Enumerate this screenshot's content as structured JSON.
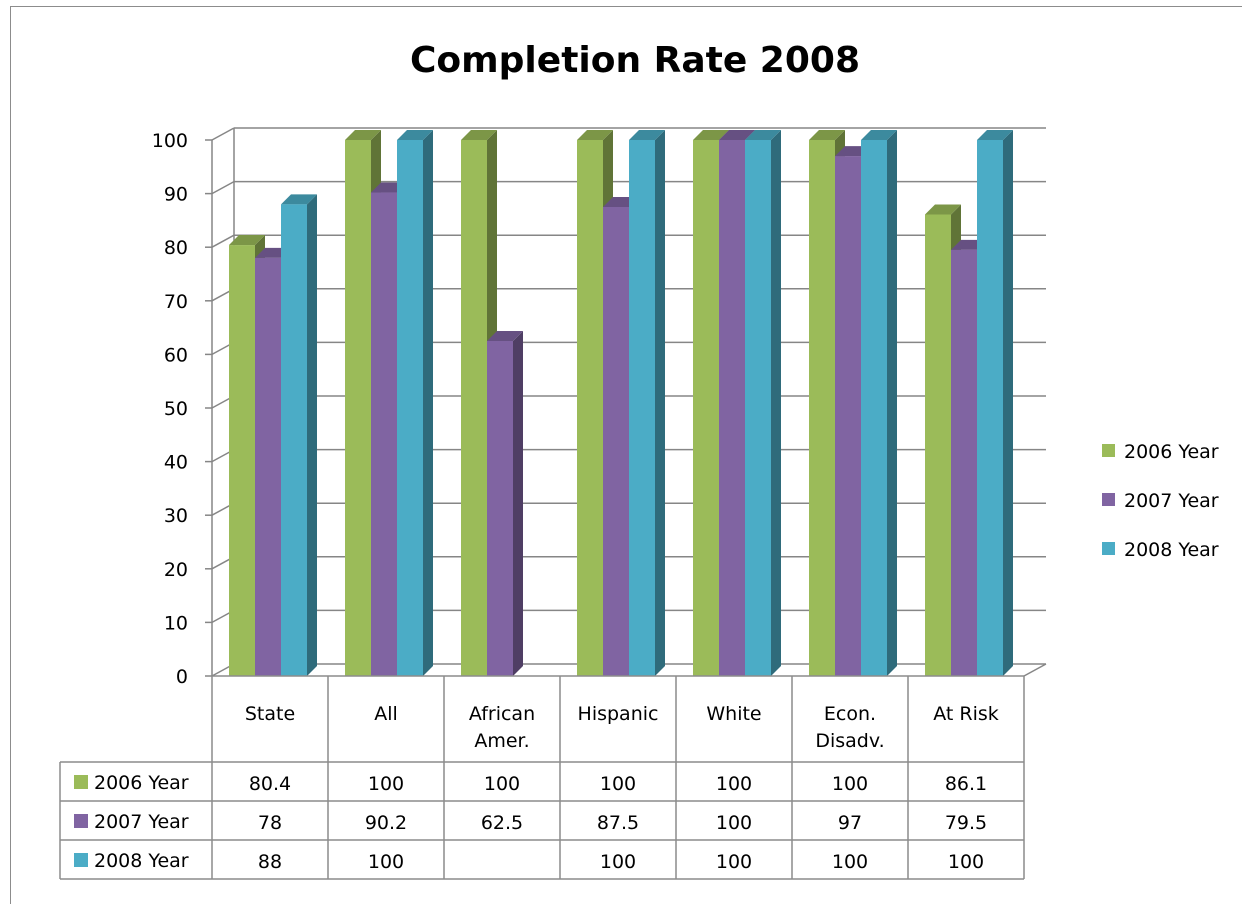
{
  "chart_data": {
    "type": "bar",
    "title": "Completion Rate 2008",
    "categories": [
      [
        "State"
      ],
      [
        "All"
      ],
      [
        "African",
        "Amer."
      ],
      [
        "Hispanic"
      ],
      [
        "White"
      ],
      [
        "Econ.",
        "Disadv."
      ],
      [
        "At Risk"
      ]
    ],
    "series": [
      {
        "name": "2006 Year",
        "color": "#9bbb59",
        "values": [
          80.4,
          100,
          100,
          100,
          100,
          100,
          86.1
        ],
        "labels": [
          "80.4",
          "100",
          "100",
          "100",
          "100",
          "100",
          "86.1"
        ]
      },
      {
        "name": "2007 Year",
        "color": "#8064a2",
        "values": [
          78,
          90.2,
          62.5,
          87.5,
          100,
          97,
          79.5
        ],
        "labels": [
          "78",
          "90.2",
          "62.5",
          "87.5",
          "100",
          "97",
          "79.5"
        ]
      },
      {
        "name": "2008 Year",
        "color": "#4bacc6",
        "values": [
          88,
          100,
          null,
          100,
          100,
          100,
          100
        ],
        "labels": [
          "88",
          "100",
          "",
          "100",
          "100",
          "100",
          "100"
        ]
      }
    ],
    "ylim": [
      0,
      100
    ],
    "yticks": [
      "0",
      "10",
      "20",
      "30",
      "40",
      "50",
      "60",
      "70",
      "80",
      "90",
      "100"
    ],
    "grid": true,
    "legend": "right",
    "data_table": true
  }
}
